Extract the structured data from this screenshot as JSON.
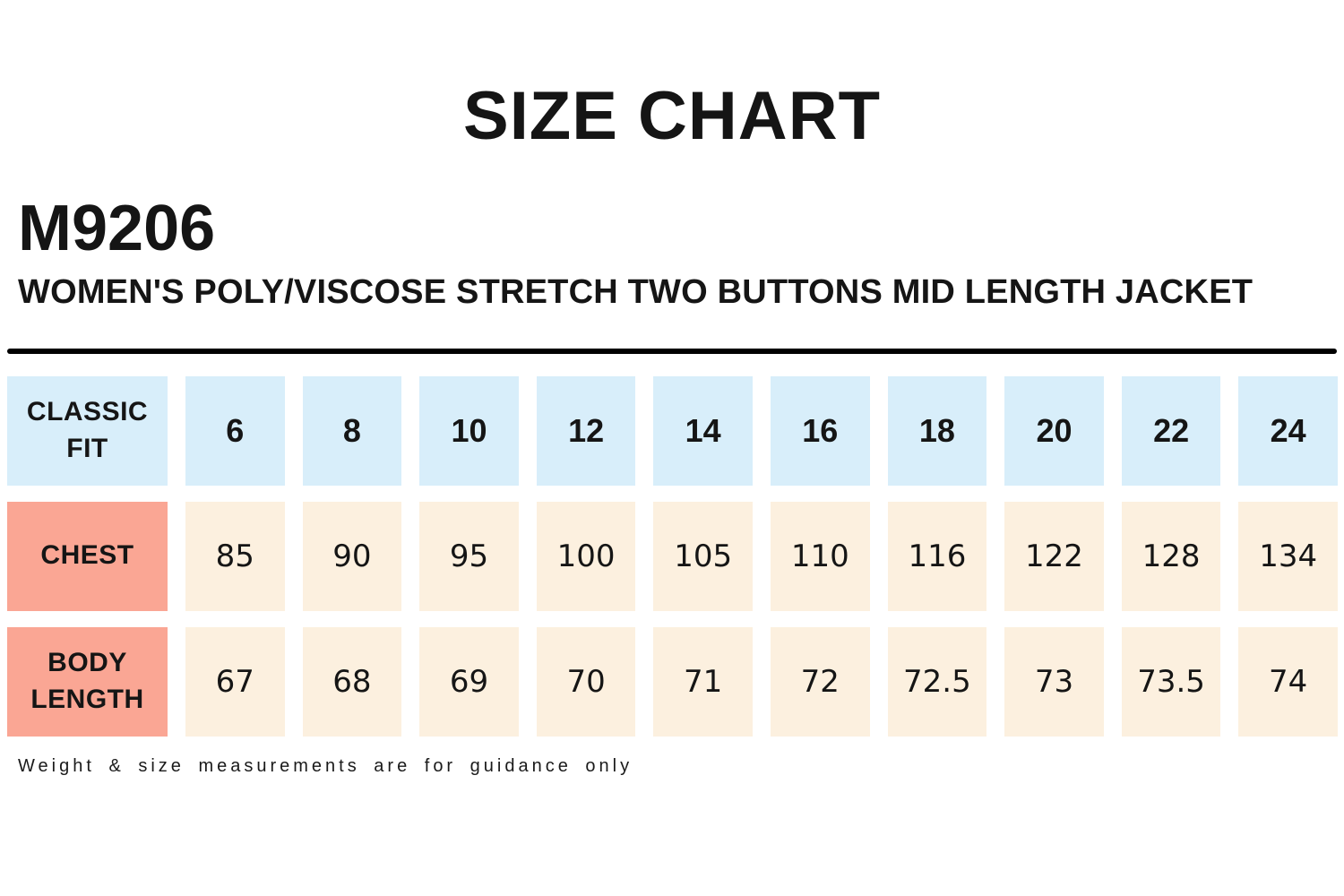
{
  "page": {
    "title": "SIZE CHART",
    "product_code": "M9206",
    "product_name": "WOMEN'S POLY/VISCOSE STRETCH TWO BUTTONS MID LENGTH JACKET",
    "footnote": "Weight & size measurements are for guidance only"
  },
  "colors": {
    "size_header_bg": "#D8EEFA",
    "row_label_bg": "#FAA694",
    "value_cell_bg": "#FCF0DF",
    "text": "#151515",
    "divider": "#000000"
  },
  "chart_data": {
    "type": "table",
    "title": "SIZE CHART",
    "fit_label": "CLASSIC FIT",
    "columns": [
      "6",
      "8",
      "10",
      "12",
      "14",
      "16",
      "18",
      "20",
      "22",
      "24"
    ],
    "rows": [
      {
        "label": "CHEST",
        "values": [
          "85",
          "90",
          "95",
          "100",
          "105",
          "110",
          "116",
          "122",
          "128",
          "134"
        ]
      },
      {
        "label": "BODY LENGTH",
        "values": [
          "67",
          "68",
          "69",
          "70",
          "71",
          "72",
          "72.5",
          "73",
          "73.5",
          "74"
        ]
      }
    ]
  }
}
